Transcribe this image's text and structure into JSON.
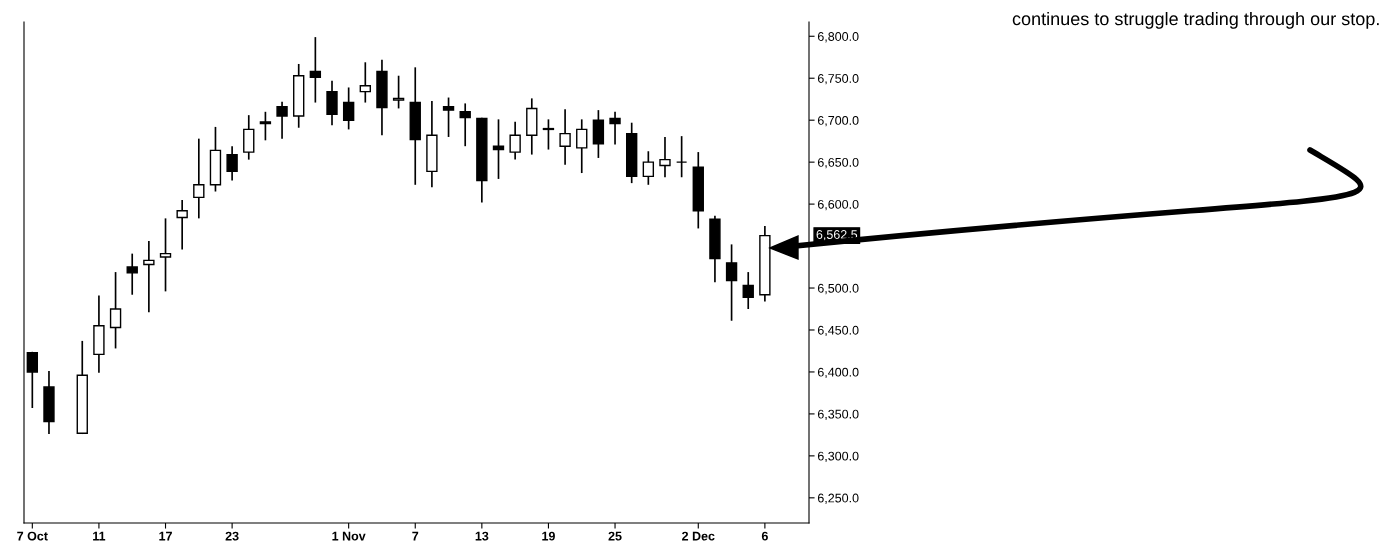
{
  "chart_data": {
    "type": "candlestick",
    "categories": [
      "7 Oct",
      null,
      null,
      null,
      "11",
      null,
      null,
      null,
      "17",
      null,
      null,
      null,
      "23",
      null,
      null,
      null,
      null,
      null,
      null,
      "1 Nov",
      null,
      null,
      null,
      "7",
      null,
      null,
      null,
      "13",
      null,
      null,
      null,
      "19",
      null,
      null,
      null,
      "25",
      null,
      null,
      null,
      null,
      "2 Dec",
      null,
      null,
      null,
      "6"
    ],
    "ohlc": [
      [
        6423,
        6423,
        6358,
        6400
      ],
      [
        6382,
        6400,
        6327,
        6341
      ],
      null,
      [
        6327,
        6436,
        6327,
        6396
      ],
      [
        6421,
        6490,
        6400,
        6455
      ],
      [
        6453,
        6518,
        6429,
        6475
      ],
      [
        6525,
        6540,
        6493,
        6518
      ],
      [
        6528,
        6555,
        6472,
        6533
      ],
      [
        6537,
        6582,
        6497,
        6541
      ],
      [
        6584,
        6604,
        6547,
        6592
      ],
      [
        6608,
        6677,
        6584,
        6623
      ],
      [
        6623,
        6691,
        6616,
        6664
      ],
      [
        6659,
        6668,
        6629,
        6639
      ],
      [
        6662,
        6705,
        6654,
        6689
      ],
      [
        6698,
        6709,
        6677,
        6696
      ],
      [
        6716,
        6721,
        6679,
        6705
      ],
      [
        6705,
        6766,
        6692,
        6753
      ],
      [
        6758,
        6798,
        6722,
        6751
      ],
      [
        6734,
        6746,
        6695,
        6707
      ],
      [
        6721,
        6738,
        6690,
        6700
      ],
      [
        6734,
        6768,
        6722,
        6741
      ],
      [
        6758,
        6771,
        6683,
        6715
      ],
      [
        6724,
        6752,
        6715,
        6726
      ],
      [
        6721,
        6762,
        6624,
        6677
      ],
      [
        6639,
        6722,
        6621,
        6682
      ],
      [
        6716,
        6726,
        6681,
        6712
      ],
      [
        6710,
        6719,
        6670,
        6703
      ],
      [
        6702,
        6702,
        6603,
        6628
      ],
      [
        6669,
        6700,
        6631,
        6665
      ],
      [
        6662,
        6697,
        6654,
        6682
      ],
      [
        6682,
        6725,
        6660,
        6714
      ],
      [
        6689,
        6700,
        6666,
        6690
      ],
      [
        6669,
        6712,
        6648,
        6684
      ],
      [
        6667,
        6700,
        6638,
        6689
      ],
      [
        6700,
        6711,
        6656,
        6672
      ],
      [
        6702,
        6709,
        6672,
        6696
      ],
      [
        6684,
        6696,
        6626,
        6633
      ],
      [
        6633,
        6662,
        6624,
        6650
      ],
      [
        6646,
        6679,
        6633,
        6653
      ],
      [
        6650,
        6680,
        6633,
        6650
      ],
      [
        6644,
        6661,
        6572,
        6592
      ],
      [
        6582,
        6585,
        6508,
        6535
      ],
      [
        6530,
        6551,
        6462,
        6509
      ],
      [
        6503,
        6518,
        6476,
        6489
      ],
      [
        6492,
        6573,
        6485,
        6562.5
      ]
    ],
    "color": "#000000",
    "ylim": [
      6220,
      6817
    ],
    "yticks": [
      {
        "value": 6250,
        "label": "6,250.0"
      },
      {
        "value": 6300,
        "label": "6,300.0"
      },
      {
        "value": 6350,
        "label": "6,350.0"
      },
      {
        "value": 6400,
        "label": "6,400.0"
      },
      {
        "value": 6450,
        "label": "6,450.0"
      },
      {
        "value": 6500,
        "label": "6,500.0"
      },
      {
        "value": 6600,
        "label": "6,600.0"
      },
      {
        "value": 6650,
        "label": "6,650.0"
      },
      {
        "value": 6700,
        "label": "6,700.0"
      },
      {
        "value": 6750,
        "label": "6,750.0"
      },
      {
        "value": 6800,
        "label": "6,800.0"
      }
    ],
    "annotations": [
      "6,562.5",
      "continues to struggle trading through our stop."
    ],
    "grid": false,
    "legend": false
  }
}
